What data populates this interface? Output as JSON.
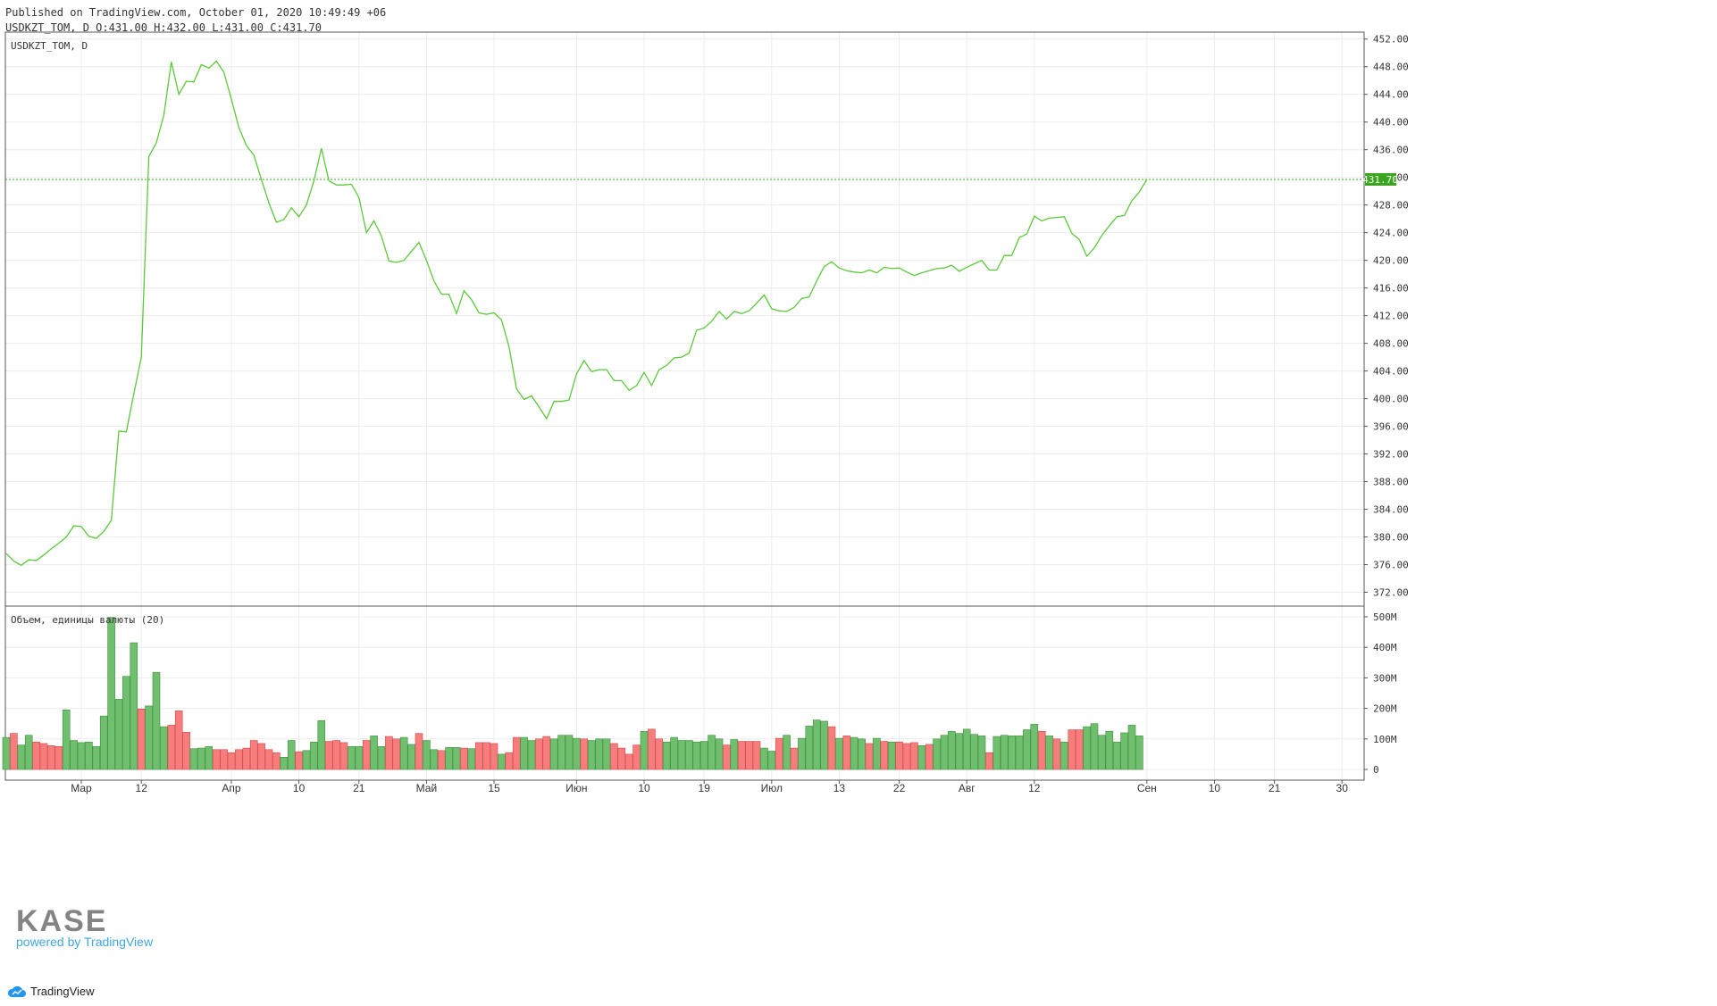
{
  "header": {
    "published": "Published on TradingView.com, October 01, 2020 10:49:49 +06",
    "ohlc": "USDKZT_TOM, D O:431.00 H:432.00 L:431.00 C:431.70"
  },
  "price_pane_label": "USDKZT_TOM, D",
  "volume_pane_label": "Объем, единицы валюты (20)",
  "last_price_label": "431.70",
  "footer_label": "TradingView",
  "watermark": {
    "brand": "KASE",
    "powered": "powered by TradingView"
  },
  "colors": {
    "line": "#5cc93a",
    "price_tag": "#3aa61f",
    "volume_up": "#6fbf6f",
    "volume_down": "#f77d7d",
    "grid": "#ececec"
  },
  "chart_data": [
    {
      "type": "line",
      "series": [
        {
          "name": "USDKZT_TOM"
        }
      ],
      "ylim": [
        370,
        453
      ],
      "y_ticks": [
        "452.00",
        "448.00",
        "444.00",
        "440.00",
        "436.00",
        "432.00",
        "428.00",
        "424.00",
        "420.00",
        "416.00",
        "412.00",
        "408.00",
        "404.00",
        "400.00",
        "396.00",
        "392.00",
        "388.00",
        "384.00",
        "380.00",
        "376.00",
        "372.00"
      ],
      "x_ticks": [
        "Мар",
        "12",
        "Апр",
        "10",
        "21",
        "Май",
        "15",
        "Июн",
        "10",
        "19",
        "Июл",
        "13",
        "22",
        "Авг",
        "12",
        "Сен",
        "10",
        "21",
        "30"
      ],
      "x_tick_index": [
        10,
        18,
        30,
        39,
        47,
        56,
        65,
        76,
        85,
        93,
        102,
        111,
        119,
        128,
        137,
        152,
        161,
        169,
        178
      ],
      "values": [
        377.6,
        376.5,
        375.9,
        376.7,
        376.6,
        377.4,
        378.3,
        379.1,
        380.0,
        381.6,
        381.5,
        380.1,
        379.8,
        380.8,
        382.4,
        395.3,
        395.2,
        400.7,
        406.0,
        435.0,
        437.0,
        441.0,
        448.7,
        444.0,
        445.9,
        445.8,
        448.3,
        447.8,
        448.8,
        447.2,
        443.3,
        439.2,
        436.6,
        435.2,
        431.7,
        428.3,
        425.5,
        425.9,
        427.6,
        426.3,
        428.0,
        431.5,
        436.2,
        431.5,
        430.9,
        430.9,
        431.0,
        429.1,
        424.0,
        425.7,
        423.5,
        419.9,
        419.7,
        420.0,
        421.3,
        422.6,
        420.0,
        417.0,
        415.1,
        415.1,
        412.3,
        415.6,
        414.3,
        412.4,
        412.2,
        412.4,
        411.4,
        407.5,
        401.4,
        399.9,
        400.4,
        398.8,
        397.1,
        399.6,
        399.6,
        399.8,
        403.6,
        405.5,
        403.9,
        404.2,
        404.2,
        402.6,
        402.6,
        401.2,
        401.9,
        403.8,
        401.9,
        404.2,
        404.8,
        405.9,
        406.0,
        406.6,
        409.9,
        410.2,
        411.2,
        412.6,
        411.5,
        412.6,
        412.3,
        412.7,
        413.8,
        415.0,
        413.0,
        412.7,
        412.6,
        413.2,
        414.5,
        414.7,
        417.0,
        419.1,
        419.8,
        418.9,
        418.5,
        418.3,
        418.2,
        418.6,
        418.2,
        419.0,
        418.8,
        418.9,
        418.3,
        417.8,
        418.2,
        418.5,
        418.8,
        418.9,
        419.3,
        418.4,
        419.0,
        419.5,
        420.0,
        418.6,
        418.6,
        420.7,
        420.7,
        423.3,
        423.8,
        426.4,
        425.7,
        426.1,
        426.2,
        426.3,
        423.9,
        423.0,
        420.6,
        421.8,
        423.6,
        425.0,
        426.3,
        426.5,
        428.6,
        429.9,
        431.7
      ]
    },
    {
      "type": "bar",
      "series": [
        {
          "name": "Объем, единицы валюты (20)"
        }
      ],
      "ylim": [
        0,
        515
      ],
      "unit": "M",
      "y_ticks": [
        "500M",
        "400M",
        "300M",
        "200M",
        "100M",
        "0"
      ],
      "values": [
        105,
        118,
        80,
        112,
        90,
        85,
        78,
        75,
        195,
        95,
        88,
        90,
        75,
        175,
        498,
        230,
        305,
        415,
        198,
        208,
        318,
        140,
        145,
        192,
        122,
        68,
        70,
        75,
        65,
        65,
        55,
        65,
        70,
        95,
        85,
        65,
        55,
        40,
        95,
        58,
        62,
        90,
        160,
        92,
        95,
        88,
        75,
        75,
        95,
        110,
        75,
        108,
        100,
        105,
        82,
        118,
        95,
        65,
        62,
        72,
        72,
        70,
        68,
        88,
        88,
        85,
        50,
        55,
        105,
        105,
        95,
        100,
        108,
        100,
        112,
        112,
        102,
        100,
        95,
        100,
        100,
        85,
        70,
        50,
        80,
        125,
        132,
        100,
        90,
        105,
        95,
        95,
        90,
        92,
        112,
        100,
        80,
        98,
        92,
        92,
        92,
        70,
        60,
        102,
        112,
        70,
        102,
        142,
        162,
        158,
        140,
        102,
        110,
        105,
        100,
        85,
        102,
        92,
        90,
        90,
        85,
        88,
        78,
        82,
        100,
        112,
        125,
        118,
        132,
        115,
        110,
        55,
        108,
        112,
        110,
        110,
        130,
        148,
        125,
        110,
        100,
        90,
        130,
        130,
        140,
        150,
        112,
        125,
        90,
        120,
        145,
        110
      ],
      "direction": [
        "up",
        "down",
        "up",
        "up",
        "down",
        "down",
        "down",
        "down",
        "up",
        "up",
        "up",
        "up",
        "up",
        "up",
        "up",
        "up",
        "up",
        "up",
        "down",
        "up",
        "up",
        "up",
        "down",
        "down",
        "down",
        "up",
        "up",
        "up",
        "down",
        "down",
        "down",
        "down",
        "down",
        "down",
        "down",
        "down",
        "down",
        "up",
        "up",
        "down",
        "up",
        "up",
        "up",
        "down",
        "down",
        "down",
        "up",
        "up",
        "down",
        "up",
        "up",
        "down",
        "down",
        "up",
        "up",
        "down",
        "up",
        "up",
        "down",
        "up",
        "up",
        "down",
        "up",
        "down",
        "down",
        "down",
        "up",
        "down",
        "down",
        "up",
        "up",
        "down",
        "down",
        "up",
        "up",
        "up",
        "up",
        "down",
        "up",
        "up",
        "up",
        "down",
        "down",
        "down",
        "down",
        "up",
        "down",
        "down",
        "up",
        "up",
        "up",
        "up",
        "up",
        "up",
        "up",
        "up",
        "down",
        "up",
        "down",
        "down",
        "down",
        "up",
        "up",
        "down",
        "up",
        "down",
        "up",
        "up",
        "up",
        "up",
        "down",
        "up",
        "down",
        "up",
        "up",
        "down",
        "up",
        "down",
        "up",
        "down",
        "down",
        "down",
        "up",
        "down",
        "up",
        "up",
        "up",
        "up",
        "up",
        "up",
        "up",
        "down",
        "up",
        "up",
        "up",
        "up",
        "up",
        "up",
        "down",
        "up",
        "down",
        "up",
        "down",
        "down",
        "up",
        "up",
        "up",
        "up",
        "up",
        "up",
        "up",
        "up"
      ]
    }
  ]
}
